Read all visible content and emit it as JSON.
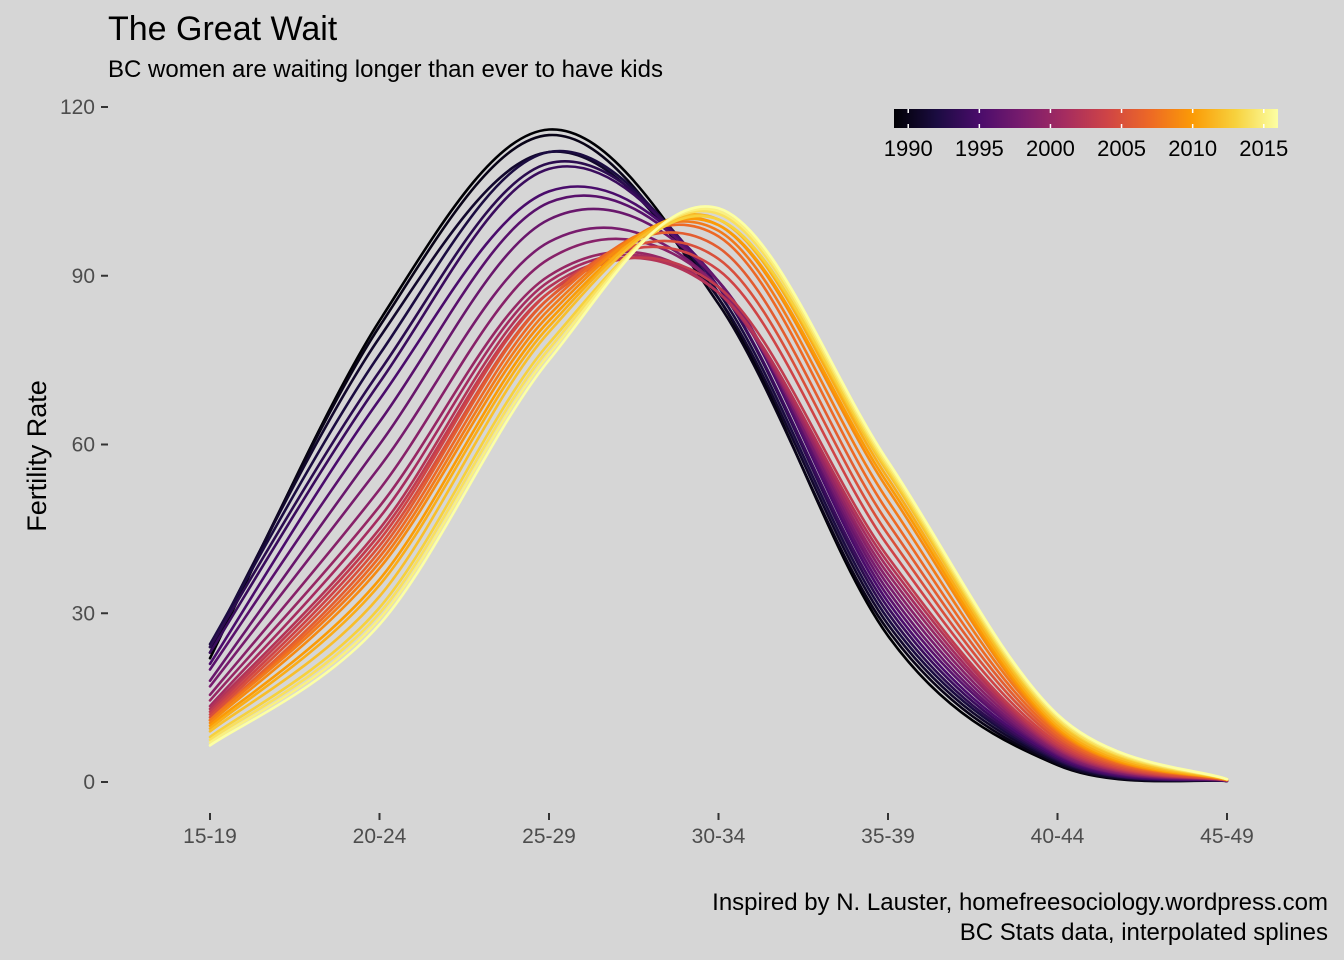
{
  "chart_data": {
    "type": "line",
    "title": "The Great Wait",
    "subtitle": "BC women are waiting longer than ever to have kids",
    "xlabel": "",
    "ylabel": "Fertility Rate",
    "categories": [
      "15-19",
      "20-24",
      "25-29",
      "30-34",
      "35-39",
      "40-44",
      "45-49"
    ],
    "yticks": [
      0,
      30,
      60,
      90,
      120
    ],
    "ylim": [
      -4,
      125
    ],
    "grid": false,
    "interpolation": "spline",
    "legend": {
      "type": "colorbar",
      "placement": "top-right",
      "ticks": [
        1990,
        1995,
        2000,
        2005,
        2010,
        2015
      ],
      "range": [
        1989,
        2016
      ],
      "palette": [
        "#000004",
        "#1b0c41",
        "#4a0c6b",
        "#781c6d",
        "#a52c60",
        "#cf4446",
        "#ed6925",
        "#fb9b06",
        "#f7d13d",
        "#fcffa4"
      ]
    },
    "series": [
      {
        "year": 1989,
        "values": [
          22.0,
          82.0,
          116.0,
          86.0,
          26.0,
          3.0,
          0.2
        ]
      },
      {
        "year": 1990,
        "values": [
          23.0,
          81.0,
          115.0,
          85.0,
          27.0,
          3.2,
          0.2
        ]
      },
      {
        "year": 1991,
        "values": [
          24.0,
          79.0,
          112.0,
          86.0,
          28.0,
          3.5,
          0.2
        ]
      },
      {
        "year": 1992,
        "values": [
          24.5,
          76.0,
          112.0,
          87.0,
          29.0,
          3.8,
          0.2
        ]
      },
      {
        "year": 1993,
        "values": [
          24.0,
          73.0,
          110.0,
          88.0,
          30.0,
          4.0,
          0.2
        ]
      },
      {
        "year": 1994,
        "values": [
          23.0,
          71.0,
          109.0,
          88.0,
          31.0,
          4.2,
          0.2
        ]
      },
      {
        "year": 1995,
        "values": [
          21.0,
          68.0,
          105.0,
          89.0,
          32.0,
          4.5,
          0.2
        ]
      },
      {
        "year": 1996,
        "values": [
          20.0,
          64.0,
          103.0,
          89.0,
          33.0,
          4.8,
          0.2
        ]
      },
      {
        "year": 1997,
        "values": [
          18.0,
          60.0,
          100.0,
          89.0,
          34.0,
          5.0,
          0.3
        ]
      },
      {
        "year": 1998,
        "values": [
          17.0,
          56.0,
          96.0,
          88.0,
          35.0,
          5.2,
          0.3
        ]
      },
      {
        "year": 1999,
        "values": [
          15.5,
          52.0,
          93.0,
          88.0,
          36.0,
          5.5,
          0.3
        ]
      },
      {
        "year": 2000,
        "values": [
          14.5,
          49.0,
          90.0,
          87.0,
          37.0,
          5.8,
          0.3
        ]
      },
      {
        "year": 2001,
        "values": [
          13.5,
          47.0,
          89.0,
          87.0,
          38.0,
          6.0,
          0.3
        ]
      },
      {
        "year": 2002,
        "values": [
          13.0,
          45.0,
          88.0,
          87.0,
          39.0,
          6.3,
          0.3
        ]
      },
      {
        "year": 2003,
        "values": [
          12.5,
          44.0,
          87.0,
          88.0,
          40.0,
          6.6,
          0.3
        ]
      },
      {
        "year": 2004,
        "values": [
          12.0,
          43.0,
          87.0,
          91.0,
          42.0,
          7.0,
          0.3
        ]
      },
      {
        "year": 2005,
        "values": [
          11.5,
          42.0,
          86.0,
          93.0,
          44.0,
          7.5,
          0.3
        ]
      },
      {
        "year": 2006,
        "values": [
          11.0,
          41.0,
          86.0,
          95.0,
          46.0,
          8.0,
          0.4
        ]
      },
      {
        "year": 2007,
        "values": [
          11.0,
          40.0,
          85.0,
          97.0,
          48.0,
          8.5,
          0.4
        ]
      },
      {
        "year": 2008,
        "values": [
          11.0,
          39.0,
          84.0,
          98.0,
          50.0,
          9.0,
          0.4
        ]
      },
      {
        "year": 2009,
        "values": [
          10.5,
          38.0,
          83.0,
          99.0,
          52.0,
          9.3,
          0.4
        ]
      },
      {
        "year": 2010,
        "values": [
          10.0,
          36.0,
          82.0,
          99.0,
          53.0,
          9.6,
          0.4
        ]
      },
      {
        "year": 2011,
        "values": [
          9.5,
          35.0,
          81.0,
          100.0,
          54.0,
          10.0,
          0.4
        ]
      },
      {
        "year": 2012,
        "values": [
          9.0,
          33.0,
          80.0,
          100.0,
          55.0,
          10.5,
          0.5
        ]
      },
      {
        "year": 2013,
        "values": [
          8.0,
          31.0,
          78.0,
          100.0,
          55.5,
          11.0,
          0.5
        ]
      },
      {
        "year": 2014,
        "values": [
          7.5,
          30.0,
          77.0,
          101.0,
          56.0,
          11.3,
          0.5
        ]
      },
      {
        "year": 2015,
        "values": [
          7.0,
          29.0,
          76.0,
          101.5,
          56.5,
          11.7,
          0.5
        ]
      },
      {
        "year": 2016,
        "values": [
          6.5,
          28.0,
          75.0,
          102.0,
          57.0,
          12.0,
          0.5
        ]
      }
    ]
  },
  "caption": {
    "line1": "Inspired by N. Lauster, homefreesociology.wordpress.com",
    "line2": "BC Stats data, interpolated splines"
  }
}
